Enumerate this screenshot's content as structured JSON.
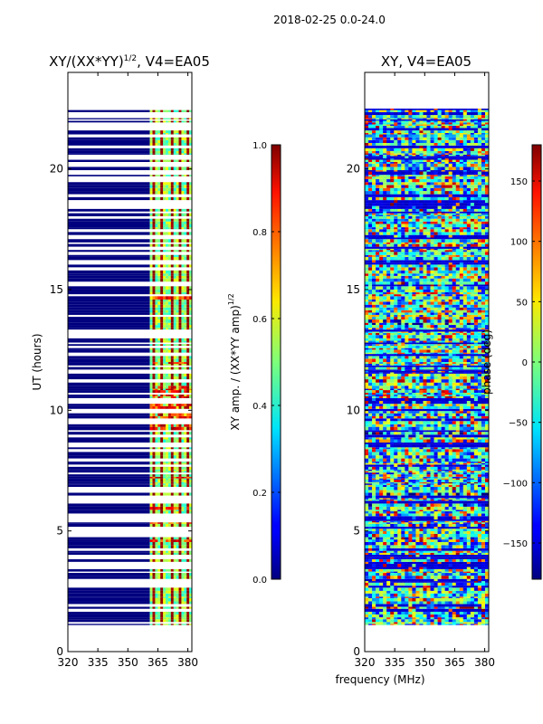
{
  "suptitle": "2018-02-25 0.0-24.0",
  "chart_data": [
    {
      "type": "heatmap",
      "id": "amp",
      "title_main": "XY/(XX*YY)",
      "title_exp": "1/2",
      "title_tail": ", V4=EA05",
      "xlabel": "",
      "ylabel": "UT (hours)",
      "xlim": [
        320,
        382
      ],
      "ylim": [
        0,
        24
      ],
      "xticks": [
        320,
        335,
        350,
        365,
        380
      ],
      "yticks": [
        0,
        5,
        10,
        15,
        20
      ],
      "data_ut_range": [
        1.1,
        22.5
      ],
      "band_freq_range": [
        361,
        382
      ],
      "colorbar": {
        "label_main": "XY amp. / (XX*YY amp)",
        "label_exp": "1/2",
        "range": [
          0.0,
          1.0
        ],
        "ticks": [
          "0.0",
          "0.2",
          "0.4",
          "0.6",
          "0.8",
          "1.0"
        ],
        "tick_values": [
          0.0,
          0.2,
          0.4,
          0.6,
          0.8,
          1.0
        ]
      }
    },
    {
      "type": "heatmap",
      "id": "phase",
      "title": "XY, V4=EA05",
      "xlabel": "frequency (MHz)",
      "ylabel": "",
      "xlim": [
        320,
        382
      ],
      "ylim": [
        0,
        24
      ],
      "xticks": [
        320,
        335,
        350,
        365,
        380
      ],
      "yticks": [
        0,
        5,
        10,
        15,
        20
      ],
      "data_ut_range": [
        1.1,
        22.5
      ],
      "colorbar": {
        "label": "phase (deg)",
        "range": [
          -180,
          180
        ],
        "ticks": [
          "150",
          "100",
          "50",
          "0",
          "−50",
          "−100",
          "−150"
        ],
        "tick_values": [
          150,
          100,
          50,
          0,
          -50,
          -100,
          -150
        ]
      }
    }
  ],
  "colors": {
    "jet_dark": "#00007f",
    "frame": "#000000"
  }
}
